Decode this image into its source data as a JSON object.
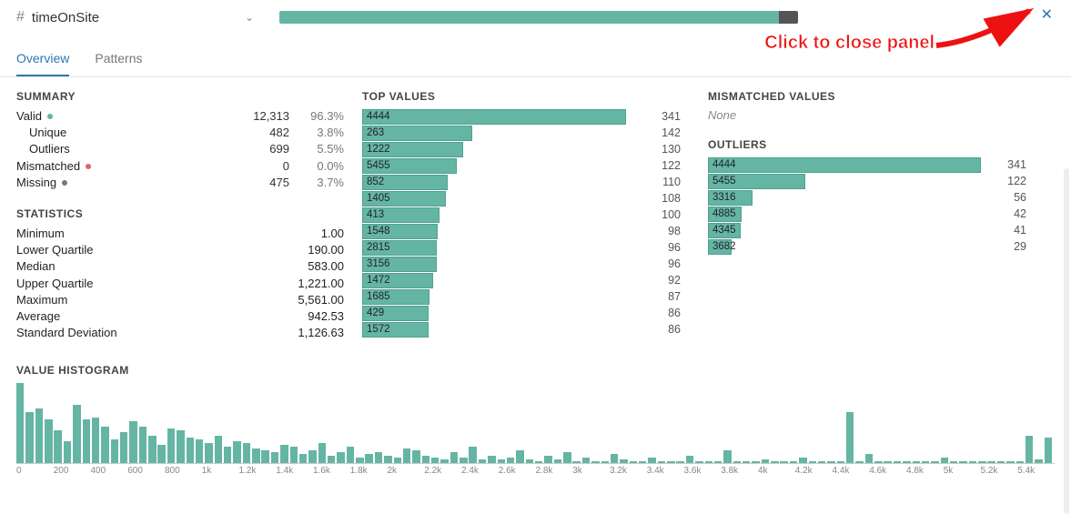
{
  "theme": {
    "teal": "#65b5a4",
    "teal_border": "#4fa08f",
    "grey_missing": "#555555",
    "link_blue": "#2a7ab0",
    "annot_red": "#ee1111",
    "text_muted": "#777777",
    "divider": "#e4e4e4"
  },
  "header": {
    "icon_glyph": "#",
    "column_name": "timeOnSite",
    "progress_valid_pct": 96.3,
    "progress_missing_pct": 3.7
  },
  "annotation": {
    "text": "Click to close panel"
  },
  "tabs": {
    "overview": "Overview",
    "patterns": "Patterns",
    "active": "overview"
  },
  "summary": {
    "title": "SUMMARY",
    "rows": [
      {
        "label": "Valid",
        "dot": "teal",
        "count": "12,313",
        "pct": "96.3%",
        "indent": false
      },
      {
        "label": "Unique",
        "dot": null,
        "count": "482",
        "pct": "3.8%",
        "indent": true
      },
      {
        "label": "Outliers",
        "dot": null,
        "count": "699",
        "pct": "5.5%",
        "indent": true
      },
      {
        "label": "Mismatched",
        "dot": "red",
        "count": "0",
        "pct": "0.0%",
        "indent": false
      },
      {
        "label": "Missing",
        "dot": "grey",
        "count": "475",
        "pct": "3.7%",
        "indent": false
      }
    ]
  },
  "statistics": {
    "title": "STATISTICS",
    "rows": [
      {
        "label": "Minimum",
        "value": "1.00"
      },
      {
        "label": "Lower Quartile",
        "value": "190.00"
      },
      {
        "label": "Median",
        "value": "583.00"
      },
      {
        "label": "Upper Quartile",
        "value": "1,221.00"
      },
      {
        "label": "Maximum",
        "value": "5,561.00"
      },
      {
        "label": "Average",
        "value": "942.53"
      },
      {
        "label": "Standard Deviation",
        "value": "1,126.63"
      }
    ]
  },
  "top_values": {
    "title": "TOP VALUES",
    "max": 341,
    "rows": [
      {
        "value": "4444",
        "count": 341
      },
      {
        "value": "263",
        "count": 142
      },
      {
        "value": "1222",
        "count": 130
      },
      {
        "value": "5455",
        "count": 122
      },
      {
        "value": "852",
        "count": 110
      },
      {
        "value": "1405",
        "count": 108
      },
      {
        "value": "413",
        "count": 100
      },
      {
        "value": "1548",
        "count": 98
      },
      {
        "value": "2815",
        "count": 96
      },
      {
        "value": "3156",
        "count": 96
      },
      {
        "value": "1472",
        "count": 92
      },
      {
        "value": "1685",
        "count": 87
      },
      {
        "value": "429",
        "count": 86
      },
      {
        "value": "1572",
        "count": 86
      }
    ]
  },
  "mismatched": {
    "title": "MISMATCHED VALUES",
    "none_text": "None"
  },
  "outliers": {
    "title": "OUTLIERS",
    "max": 341,
    "rows": [
      {
        "value": "4444",
        "count": 341
      },
      {
        "value": "5455",
        "count": 122
      },
      {
        "value": "3316",
        "count": 56
      },
      {
        "value": "4885",
        "count": 42
      },
      {
        "value": "4345",
        "count": 41
      },
      {
        "value": "3682",
        "count": 29
      }
    ]
  },
  "histogram": {
    "title": "VALUE HISTOGRAM",
    "axis_labels": [
      "0",
      "200",
      "400",
      "600",
      "800",
      "1k",
      "1.2k",
      "1.4k",
      "1.6k",
      "1.8k",
      "2k",
      "2.2k",
      "2.4k",
      "2.6k",
      "2.8k",
      "3k",
      "3.2k",
      "3.4k",
      "3.6k",
      "3.8k",
      "4k",
      "4.2k",
      "4.4k",
      "4.6k",
      "4.8k",
      "5k",
      "5.2k",
      "5.4k"
    ],
    "max_h": 88,
    "bars": [
      88,
      56,
      60,
      48,
      36,
      24,
      64,
      48,
      50,
      40,
      26,
      34,
      46,
      40,
      30,
      20,
      38,
      36,
      28,
      26,
      22,
      30,
      18,
      24,
      22,
      16,
      14,
      12,
      20,
      18,
      10,
      14,
      22,
      8,
      12,
      18,
      6,
      10,
      12,
      8,
      6,
      16,
      14,
      8,
      6,
      4,
      12,
      6,
      18,
      4,
      8,
      4,
      6,
      14,
      4,
      2,
      8,
      4,
      12,
      2,
      6,
      2,
      2,
      10,
      4,
      2,
      2,
      6,
      2,
      2,
      2,
      8,
      2,
      2,
      2,
      14,
      2,
      2,
      2,
      4,
      2,
      2,
      2,
      6,
      2,
      2,
      2,
      2,
      56,
      2,
      10,
      2,
      2,
      2,
      2,
      2,
      2,
      2,
      6,
      2,
      2,
      2,
      2,
      2,
      2,
      2,
      2,
      30,
      4,
      28
    ]
  }
}
